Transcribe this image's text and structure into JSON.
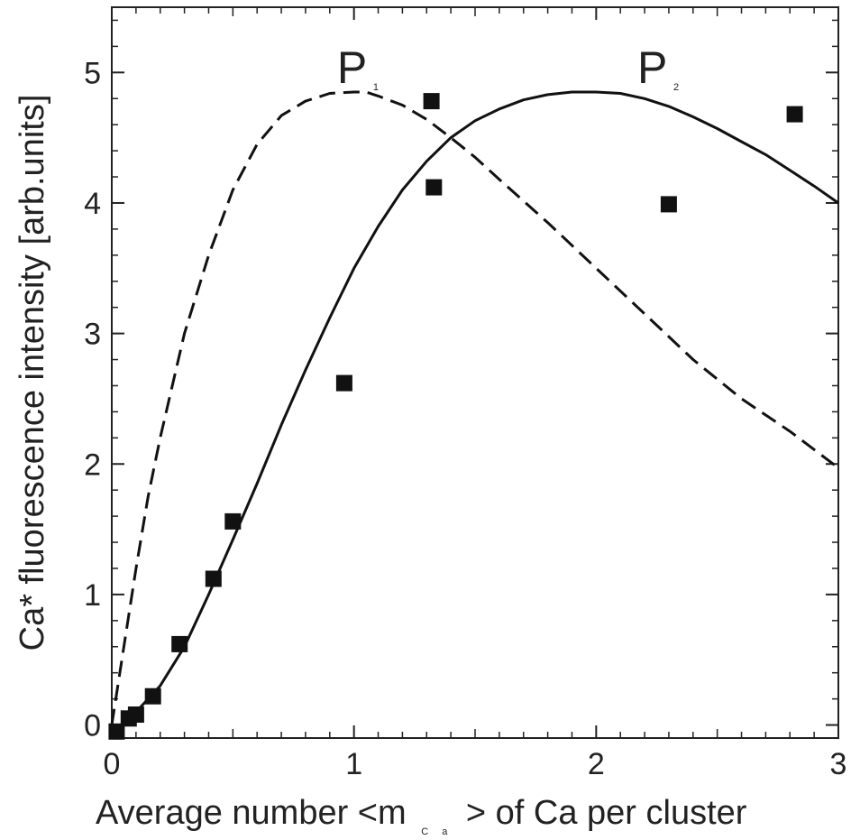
{
  "chart_data": {
    "type": "scatter",
    "xlabel": {
      "main": "Average number <m",
      "subscript": "C a",
      "rest": "> of  Ca per cluster"
    },
    "ylabel": "Ca* fluorescence intensity [arb.units]",
    "xlim": [
      0,
      3
    ],
    "ylim": [
      -0.1,
      5.5
    ],
    "xticks": [
      0,
      1,
      2,
      3
    ],
    "yticks": [
      0,
      1,
      2,
      3,
      4,
      5
    ],
    "xtick_labels": [
      "0",
      "1",
      "2",
      "3"
    ],
    "ytick_labels": [
      "0",
      "1",
      "2",
      "3",
      "4",
      "5"
    ],
    "grid": false,
    "series": [
      {
        "kind": "scatter",
        "marker": "square",
        "color": "#111111",
        "x": [
          0.02,
          0.07,
          0.1,
          0.17,
          0.28,
          0.42,
          0.5,
          0.96,
          1.32,
          1.33,
          2.3,
          2.82
        ],
        "y": [
          -0.05,
          0.05,
          0.08,
          0.22,
          0.62,
          1.12,
          1.56,
          2.62,
          4.78,
          4.12,
          3.99,
          4.68
        ]
      },
      {
        "kind": "line",
        "style": "dashed",
        "color": "#111111",
        "x": [
          0.0,
          0.05,
          0.1,
          0.15,
          0.2,
          0.3,
          0.4,
          0.5,
          0.6,
          0.7,
          0.8,
          0.9,
          1.0,
          1.05,
          1.1,
          1.2,
          1.3,
          1.4,
          1.5,
          1.6,
          1.8,
          2.0,
          2.2,
          2.4,
          2.6,
          2.8,
          3.0
        ],
        "y": [
          0.0,
          0.6,
          1.2,
          1.75,
          2.2,
          3.0,
          3.6,
          4.1,
          4.45,
          4.67,
          4.78,
          4.84,
          4.85,
          4.85,
          4.82,
          4.75,
          4.64,
          4.5,
          4.35,
          4.18,
          3.85,
          3.5,
          3.15,
          2.8,
          2.5,
          2.25,
          1.97
        ]
      },
      {
        "kind": "line",
        "style": "solid",
        "color": "#111111",
        "x": [
          0.0,
          0.1,
          0.2,
          0.3,
          0.4,
          0.5,
          0.6,
          0.7,
          0.8,
          0.9,
          1.0,
          1.1,
          1.2,
          1.3,
          1.4,
          1.5,
          1.6,
          1.7,
          1.8,
          1.9,
          2.0,
          2.1,
          2.2,
          2.3,
          2.4,
          2.5,
          2.6,
          2.7,
          2.8,
          2.9,
          3.0
        ],
        "y": [
          -0.08,
          0.1,
          0.3,
          0.6,
          1.0,
          1.42,
          1.85,
          2.3,
          2.72,
          3.12,
          3.5,
          3.82,
          4.1,
          4.32,
          4.5,
          4.63,
          4.72,
          4.79,
          4.83,
          4.85,
          4.85,
          4.84,
          4.8,
          4.74,
          4.66,
          4.57,
          4.47,
          4.37,
          4.25,
          4.13,
          4.0
        ]
      }
    ],
    "annotations": [
      {
        "label": "P",
        "subscript": "1",
        "x": 0.93,
        "y": 4.92
      },
      {
        "label": "P",
        "subscript": "2",
        "x": 2.17,
        "y": 4.92
      }
    ]
  }
}
